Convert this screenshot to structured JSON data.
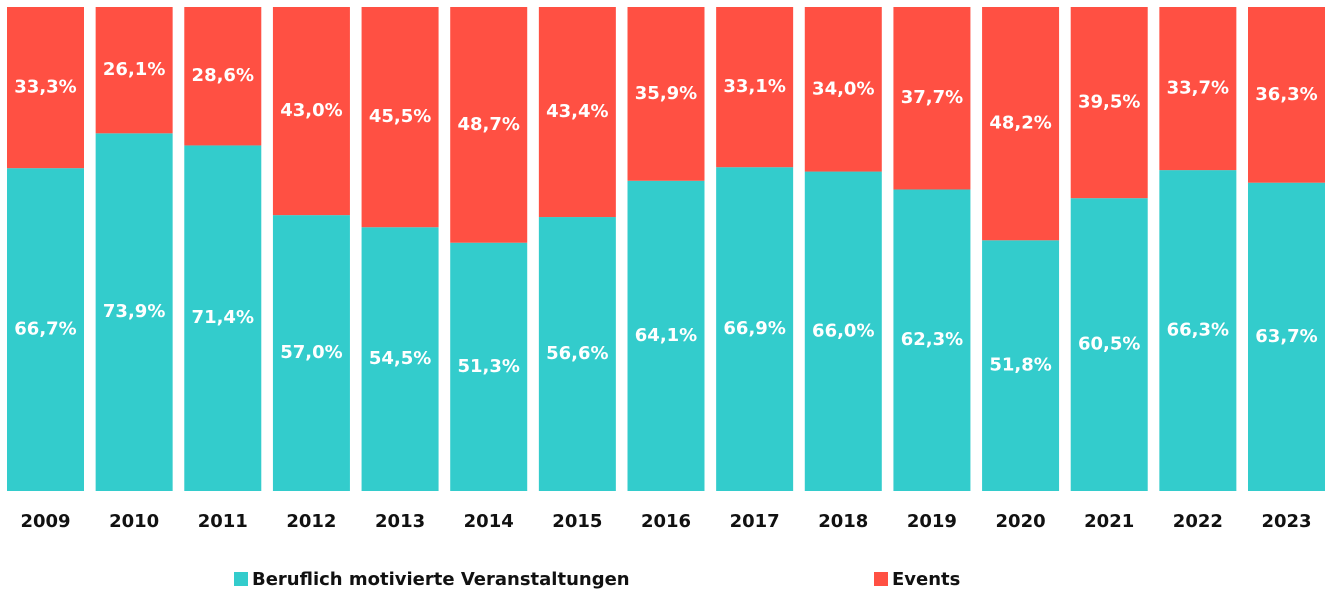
{
  "chart_data": {
    "type": "stacked_bar",
    "categories": [
      "2009",
      "2010",
      "2011",
      "2012",
      "2013",
      "2014",
      "2015",
      "2016",
      "2017",
      "2018",
      "2019",
      "2020",
      "2021",
      "2022",
      "2023"
    ],
    "series": [
      {
        "name": "Beruflich motivierte Veranstaltungen",
        "color": "#33cccc",
        "values": [
          66.7,
          73.9,
          71.4,
          57.0,
          54.5,
          51.3,
          56.6,
          64.1,
          66.9,
          66.0,
          62.3,
          51.8,
          60.5,
          66.3,
          63.7
        ],
        "value_labels": [
          "66,7%",
          "73,9%",
          "71,4%",
          "57,0%",
          "54,5%",
          "51,3%",
          "56,6%",
          "64,1%",
          "66,9%",
          "66,0%",
          "62,3%",
          "51,8%",
          "60,5%",
          "66,3%",
          "63,7%"
        ]
      },
      {
        "name": "Events",
        "color": "#ff5043",
        "values": [
          33.3,
          26.1,
          28.6,
          43.0,
          45.5,
          48.7,
          43.4,
          35.9,
          33.1,
          34.0,
          37.7,
          48.2,
          39.5,
          33.7,
          36.3
        ],
        "value_labels": [
          "33,3%",
          "26,1%",
          "28,6%",
          "43,0%",
          "45,5%",
          "48,7%",
          "43,4%",
          "35,9%",
          "33,1%",
          "34,0%",
          "37,7%",
          "48,2%",
          "39,5%",
          "33,7%",
          "36,3%"
        ]
      }
    ],
    "legend": "bottom"
  }
}
